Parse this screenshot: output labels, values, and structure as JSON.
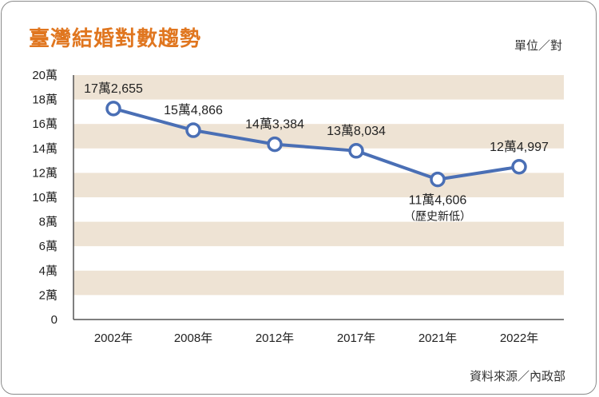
{
  "header": {
    "title": "臺灣結婚對數趨勢",
    "unit": "單位／對"
  },
  "footer": {
    "source": "資料來源／內政部"
  },
  "colors": {
    "title": "#e0761f",
    "line": "#4a6fb5",
    "band": "#eee3d4"
  },
  "chart_data": {
    "type": "line",
    "title": "臺灣結婚對數趨勢",
    "categories": [
      "2002年",
      "2008年",
      "2012年",
      "2017年",
      "2021年",
      "2022年"
    ],
    "values": [
      172655,
      154866,
      143384,
      138034,
      114606,
      124997
    ],
    "point_labels": [
      "17萬2,655",
      "15萬4,866",
      "14萬3,384",
      "13萬8,034",
      "11萬4,606",
      "12萬4,997"
    ],
    "annotation": {
      "index": 4,
      "text": "（歷史新低）"
    },
    "ylim": [
      0,
      200000
    ],
    "yticks": [
      {
        "value": 0,
        "label": "0"
      },
      {
        "value": 20000,
        "label": "2萬"
      },
      {
        "value": 40000,
        "label": "4萬"
      },
      {
        "value": 60000,
        "label": "6萬"
      },
      {
        "value": 80000,
        "label": "8萬"
      },
      {
        "value": 100000,
        "label": "10萬"
      },
      {
        "value": 120000,
        "label": "12萬"
      },
      {
        "value": 140000,
        "label": "14萬"
      },
      {
        "value": 160000,
        "label": "16萬"
      },
      {
        "value": 180000,
        "label": "18萬"
      },
      {
        "value": 200000,
        "label": "20萬"
      }
    ],
    "ylabel": "單位／對",
    "source": "資料來源／內政部"
  }
}
